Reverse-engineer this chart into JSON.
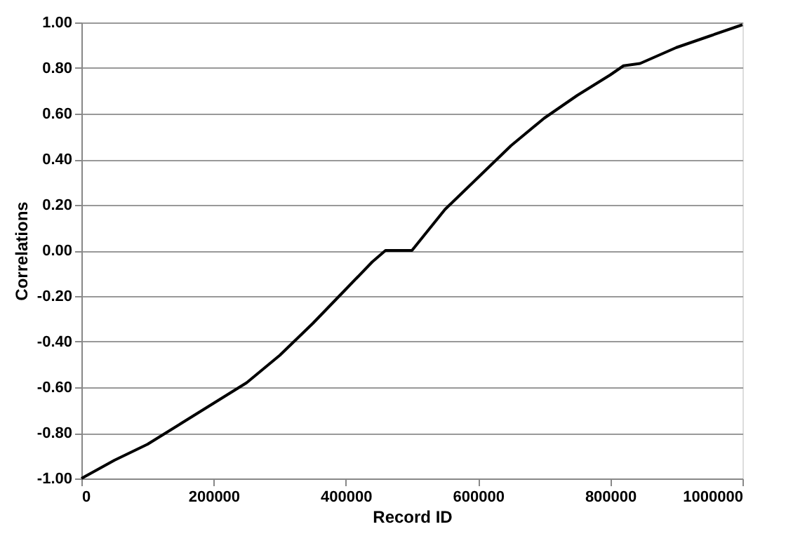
{
  "chart_data": {
    "type": "line",
    "xlabel": "Record ID",
    "ylabel": "Correlations",
    "x": [
      0,
      50000,
      100000,
      150000,
      200000,
      250000,
      300000,
      350000,
      400000,
      440000,
      460000,
      500000,
      550000,
      600000,
      650000,
      700000,
      750000,
      800000,
      820000,
      845000,
      900000,
      950000,
      1000000
    ],
    "series": [
      {
        "color": "#000000",
        "values": [
          -1.0,
          -0.92,
          -0.85,
          -0.76,
          -0.67,
          -0.58,
          -0.46,
          -0.32,
          -0.17,
          -0.05,
          0.0,
          0.0,
          0.18,
          0.32,
          0.46,
          0.58,
          0.68,
          0.77,
          0.81,
          0.82,
          0.89,
          0.94,
          0.99
        ]
      }
    ],
    "xlim": [
      0,
      1000000
    ],
    "xticks": [
      0,
      200000,
      400000,
      600000,
      800000,
      1000000
    ],
    "ylim": [
      -1,
      1
    ],
    "yticks": [
      {
        "value": -1,
        "label": "-1.00"
      },
      {
        "value": -0.8,
        "label": "-0.80"
      },
      {
        "value": -0.6,
        "label": "-0.60"
      },
      {
        "value": -0.4,
        "label": "-0.40"
      },
      {
        "value": -0.2,
        "label": "-0.20"
      },
      {
        "value": 0,
        "label": "0.00"
      },
      {
        "value": 0.2,
        "label": "0.20"
      },
      {
        "value": 0.4,
        "label": "0.40"
      },
      {
        "value": 0.6,
        "label": "0.60"
      },
      {
        "value": 0.8,
        "label": "0.80"
      },
      {
        "value": 1,
        "label": "1.00"
      }
    ],
    "grid": "y",
    "marker": "none",
    "line_style": "solid"
  }
}
